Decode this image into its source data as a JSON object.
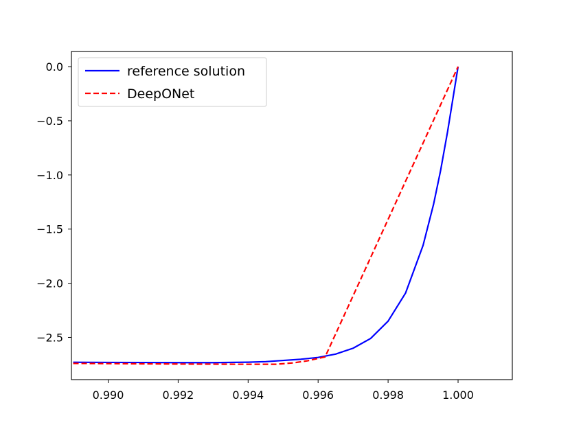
{
  "chart_data": {
    "type": "line",
    "title": "",
    "xlabel": "",
    "ylabel": "",
    "xlim": [
      0.98895,
      1.00155
    ],
    "ylim": [
      -2.89,
      0.14
    ],
    "x_ticks": [
      {
        "value": 0.99,
        "label": "0.990"
      },
      {
        "value": 0.992,
        "label": "0.992"
      },
      {
        "value": 0.994,
        "label": "0.994"
      },
      {
        "value": 0.996,
        "label": "0.996"
      },
      {
        "value": 0.998,
        "label": "0.998"
      },
      {
        "value": 1.0,
        "label": "1.000"
      }
    ],
    "y_ticks": [
      {
        "value": 0.0,
        "label": "0.0"
      },
      {
        "value": -0.5,
        "label": "−0.5"
      },
      {
        "value": -1.0,
        "label": "−1.0"
      },
      {
        "value": -1.5,
        "label": "−1.5"
      },
      {
        "value": -2.0,
        "label": "−2.0"
      },
      {
        "value": -2.5,
        "label": "−2.5"
      }
    ],
    "grid": false,
    "legend_position": "upper-left",
    "series": [
      {
        "name": "reference solution",
        "color": "#0000ff",
        "style": "solid",
        "x": [
          0.989,
          0.99,
          0.991,
          0.992,
          0.993,
          0.994,
          0.9945,
          0.995,
          0.9955,
          0.996,
          0.9965,
          0.997,
          0.9975,
          0.998,
          0.9985,
          0.999,
          0.9993,
          0.9995,
          0.9997,
          0.9999,
          1.0
        ],
        "y": [
          -2.73,
          -2.731,
          -2.732,
          -2.733,
          -2.733,
          -2.729,
          -2.724,
          -2.713,
          -2.702,
          -2.685,
          -2.654,
          -2.6,
          -2.51,
          -2.35,
          -2.09,
          -1.65,
          -1.27,
          -0.96,
          -0.6,
          -0.2,
          0.0
        ]
      },
      {
        "name": "DeepONet",
        "color": "#ff0000",
        "style": "dashed",
        "x": [
          0.989,
          0.99,
          0.991,
          0.992,
          0.993,
          0.994,
          0.9948,
          0.9953,
          0.9957,
          0.9962,
          1.0
        ],
        "y": [
          -2.74,
          -2.742,
          -2.744,
          -2.746,
          -2.747,
          -2.748,
          -2.748,
          -2.735,
          -2.716,
          -2.68,
          0.0
        ]
      }
    ]
  }
}
